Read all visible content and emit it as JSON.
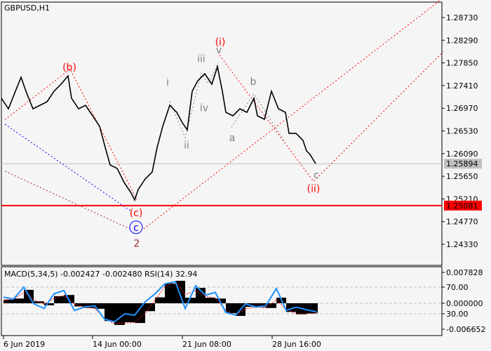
{
  "chart_data": {
    "type": "line",
    "title": "GBPUSD,H1",
    "price_axis": {
      "ticks": [
        "1.28730",
        "1.28290",
        "1.27850",
        "1.27410",
        "1.26970",
        "1.26530",
        "1.26090",
        "1.25650",
        "1.25210",
        "1.24770",
        "1.24330"
      ],
      "ylim": [
        1.2416,
        1.2882
      ]
    },
    "time_axis": {
      "ticks": [
        {
          "bar": 3,
          "label": "6 Jun 2019"
        },
        {
          "bar": 130,
          "label": "14 Jun 00:00"
        },
        {
          "bar": 258,
          "label": "21 Jun 08:00"
        },
        {
          "bar": 386,
          "label": "28 Jun 16:00"
        }
      ]
    },
    "price_series": {
      "bars": [
        0,
        10,
        20,
        28,
        35,
        45,
        55,
        65,
        75,
        85,
        95,
        100,
        110,
        120,
        130,
        140,
        148,
        155,
        165,
        175,
        185,
        190,
        195,
        205,
        215,
        222,
        230,
        240,
        250,
        258,
        265,
        272,
        280,
        290,
        300,
        308,
        315,
        320,
        330,
        340,
        350,
        360,
        365,
        375,
        385,
        395,
        405,
        410,
        420,
        430,
        435,
        440,
        448
      ],
      "close": [
        1.27164,
        1.26959,
        1.273,
        1.27572,
        1.273,
        1.26959,
        1.27027,
        1.27096,
        1.273,
        1.27436,
        1.276,
        1.27164,
        1.26959,
        1.27027,
        1.26823,
        1.26619,
        1.2621,
        1.2587,
        1.25802,
        1.25529,
        1.25325,
        1.25189,
        1.25393,
        1.25597,
        1.25734,
        1.2621,
        1.26619,
        1.27027,
        1.26891,
        1.26687,
        1.26551,
        1.273,
        1.27504,
        1.2764,
        1.27436,
        1.27777,
        1.273,
        1.26891,
        1.26823,
        1.26959,
        1.26891,
        1.27164,
        1.26823,
        1.26755,
        1.273,
        1.26959,
        1.26891,
        1.26483,
        1.26483,
        1.26346,
        1.26142,
        1.26074,
        1.25894
      ]
    },
    "current_price": {
      "value": 1.25894,
      "label": "1.25894",
      "color": "#c0c0c0"
    },
    "level_line": {
      "value": 1.25081,
      "label": "1.25081",
      "color": "#ff0000"
    },
    "wave_labels": [
      {
        "text": "(b)",
        "bar": 97,
        "price": 1.2777,
        "color": "#ff0000"
      },
      {
        "text": "(c)",
        "bar": 192,
        "price": 1.2494,
        "color": "#ff0000"
      },
      {
        "text": "c",
        "bar": 192,
        "price": 1.2466,
        "color": "#0000ff",
        "circled": true
      },
      {
        "text": "2",
        "bar": 193,
        "price": 1.2435,
        "color": "#a52a2a"
      },
      {
        "text": "i",
        "bar": 237,
        "price": 1.2748,
        "color": "#808080"
      },
      {
        "text": "ii",
        "bar": 264,
        "price": 1.2626,
        "color": "#808080"
      },
      {
        "text": "iii",
        "bar": 285,
        "price": 1.2793,
        "color": "#808080"
      },
      {
        "text": "iv",
        "bar": 289,
        "price": 1.2698,
        "color": "#808080"
      },
      {
        "text": "v",
        "bar": 310,
        "price": 1.281,
        "color": "#808080"
      },
      {
        "text": "(i)",
        "bar": 312,
        "price": 1.2826,
        "color": "#ff0000"
      },
      {
        "text": "a",
        "bar": 329,
        "price": 1.264,
        "color": "#808080"
      },
      {
        "text": "b",
        "bar": 359,
        "price": 1.2749,
        "color": "#808080"
      },
      {
        "text": "c",
        "bar": 449,
        "price": 1.2568,
        "color": "#808080"
      },
      {
        "text": "(ii)",
        "bar": 445,
        "price": 1.2541,
        "color": "#ff0000"
      }
    ],
    "wave_lines": [
      {
        "color": "#ff0000",
        "points": [
          [
            5,
            1.2675
          ],
          [
            98,
            1.2773
          ],
          [
            193,
            1.252
          ]
        ]
      },
      {
        "color": "#0000ff",
        "points": [
          [
            5,
            1.2666
          ],
          [
            185,
            1.2497
          ]
        ]
      },
      {
        "color": "#a52a2a",
        "points": [
          [
            5,
            1.2575
          ],
          [
            183,
            1.2463
          ]
        ]
      },
      {
        "color": "#ff0000",
        "points": [
          [
            203,
            1.2463
          ],
          [
            628,
            1.2909
          ]
        ]
      },
      {
        "color": "#ff0000",
        "points": [
          [
            311,
            1.28
          ],
          [
            445,
            1.2555
          ],
          [
            630,
            1.2807
          ]
        ]
      },
      {
        "color": "#808080",
        "points": [
          [
            240,
            1.271
          ],
          [
            262,
            1.264
          ],
          [
            285,
            1.2765
          ],
          [
            295,
            1.2745
          ],
          [
            309,
            1.2785
          ]
        ]
      },
      {
        "color": "#808080",
        "points": [
          [
            328,
            1.266
          ],
          [
            360,
            1.2725
          ],
          [
            405,
            1.263
          ]
        ]
      }
    ],
    "indicator": {
      "title": "MACD(5,34,5) -0.002427 -0.002480 RSI(14) 32.94",
      "ticks": [
        "0.007828",
        "70.00",
        "0.000000",
        "30.00",
        "-0.006652"
      ],
      "macd_range": [
        -0.006652,
        0.007828
      ],
      "rsi_levels": [
        70,
        30
      ],
      "bars": [
        3,
        17,
        32,
        46,
        61,
        75,
        89,
        104,
        118,
        133,
        147,
        161,
        176,
        190,
        205,
        219,
        233,
        248,
        262,
        277,
        291,
        305,
        320,
        334,
        348,
        363,
        377,
        392,
        406,
        420,
        435,
        449
      ],
      "macd": [
        0.0009,
        0.0012,
        0.0034,
        0.0005,
        -0.0005,
        0.0018,
        0.0021,
        -0.0008,
        -0.0012,
        -0.0014,
        -0.0045,
        -0.0055,
        -0.0048,
        -0.005,
        -0.002,
        0.0015,
        0.005,
        0.0057,
        0.0014,
        0.0039,
        0.0014,
        0.0012,
        -0.0025,
        -0.0032,
        -0.0009,
        -0.001,
        -0.0012,
        0.0014,
        -0.0022,
        -0.0028,
        -0.0026,
        -0.0024
      ],
      "signal": [
        0.0008,
        0.001,
        0.0028,
        0.001,
        -0.0002,
        0.0012,
        0.002,
        -0.0002,
        -0.001,
        -0.0013,
        -0.0038,
        -0.0052,
        -0.005,
        -0.0049,
        -0.0026,
        0.0008,
        0.0042,
        0.0055,
        0.0022,
        0.0032,
        0.0018,
        0.0013,
        -0.0018,
        -0.003,
        -0.0014,
        -0.001,
        -0.0011,
        0.0008,
        -0.0015,
        -0.0026,
        -0.0026,
        -0.0025
      ],
      "rsi": [
        55,
        52,
        70,
        45,
        38,
        60,
        65,
        35,
        40,
        42,
        22,
        18,
        30,
        28,
        48,
        60,
        75,
        78,
        38,
        72,
        58,
        62,
        32,
        28,
        45,
        40,
        42,
        68,
        35,
        40,
        36,
        33
      ],
      "rsi_color": "#1e90ff",
      "signal_color": "#ff0000"
    }
  }
}
